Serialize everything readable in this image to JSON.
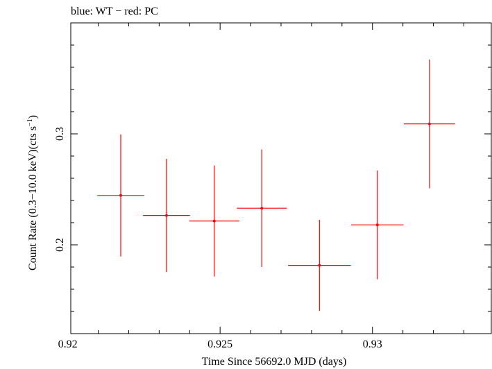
{
  "chart_data": {
    "type": "scatter",
    "title": "blue: WT − red: PC",
    "xlabel": "Time Since 56692.0 MJD (days)",
    "ylabel_main": "Count Rate (0.3−10.0 keV)(cts s",
    "ylabel_sup": "−1",
    "ylabel_end": ")",
    "xlim": [
      0.9201,
      0.9339
    ],
    "ylim": [
      0.12,
      0.4
    ],
    "x_ticks": [
      {
        "value": 0.92,
        "label": "0.92"
      },
      {
        "value": 0.925,
        "label": "0.925"
      },
      {
        "value": 0.93,
        "label": "0.93"
      }
    ],
    "y_ticks": [
      {
        "value": 0.2,
        "label": "0.2"
      },
      {
        "value": 0.3,
        "label": "0.3"
      }
    ],
    "x_minor_step": 0.001,
    "y_minor_step": 0.02,
    "series": [
      {
        "name": "PC",
        "color": "#ff0000",
        "points": [
          {
            "x": 0.92174,
            "xerr": 0.00077,
            "y": 0.2445,
            "yerr": 0.055
          },
          {
            "x": 0.92324,
            "xerr": 0.00077,
            "y": 0.2265,
            "yerr": 0.051
          },
          {
            "x": 0.92481,
            "xerr": 0.00082,
            "y": 0.2215,
            "yerr": 0.05
          },
          {
            "x": 0.92637,
            "xerr": 0.00082,
            "y": 0.233,
            "yerr": 0.053
          },
          {
            "x": 0.92826,
            "xerr": 0.00103,
            "y": 0.1815,
            "yerr": 0.041
          },
          {
            "x": 0.93016,
            "xerr": 0.00086,
            "y": 0.218,
            "yerr": 0.049
          },
          {
            "x": 0.93187,
            "xerr": 0.00084,
            "y": 0.309,
            "yerr": 0.058
          }
        ]
      }
    ]
  }
}
